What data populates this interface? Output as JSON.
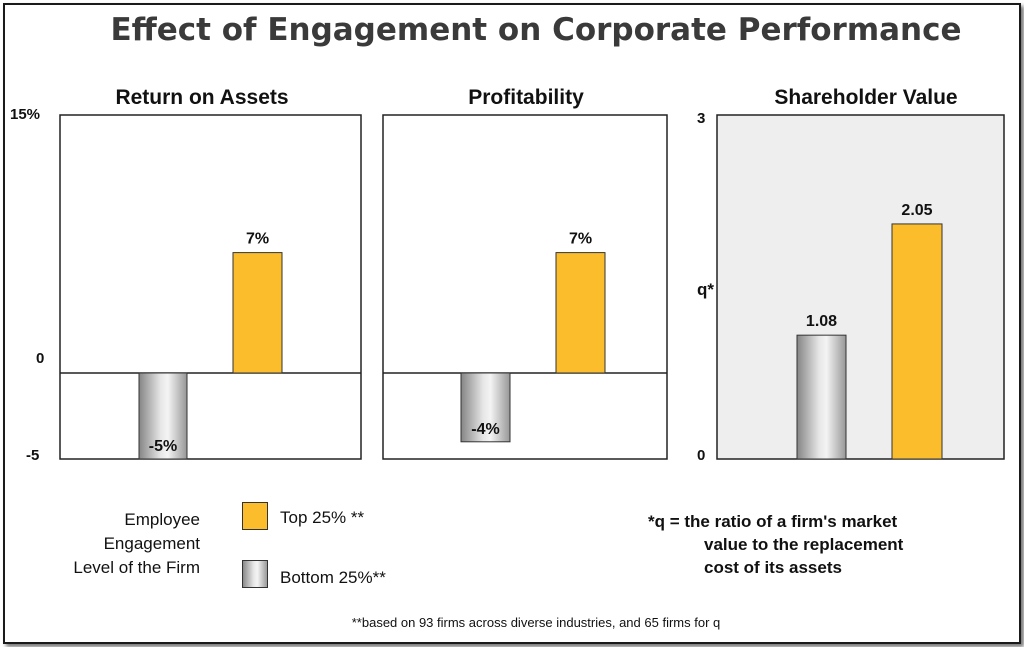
{
  "title": "Effect of Engagement on Corporate Performance",
  "colors": {
    "top": "#fbbd2c",
    "bottom_gradient": [
      "#8a8a8a",
      "#f0f0f0",
      "#9a9a9a"
    ],
    "panel3_bg": "#eeeeee"
  },
  "chart_data": [
    {
      "type": "bar",
      "title": "Return on Assets",
      "ylim": [
        -5,
        15
      ],
      "ytick_labels": [
        "15%",
        "0",
        "-5"
      ],
      "categories": [
        "Bottom 25% **",
        "Top 25% **"
      ],
      "values": [
        -5,
        7
      ],
      "data_labels": [
        "-5%",
        "7%"
      ]
    },
    {
      "type": "bar",
      "title": "Profitability",
      "ylim": [
        -5,
        15
      ],
      "categories": [
        "Bottom 25% **",
        "Top 25% **"
      ],
      "values": [
        -4,
        7
      ],
      "data_labels": [
        "-4%",
        "7%"
      ]
    },
    {
      "type": "bar",
      "title": "Shareholder Value",
      "ylabel": "q*",
      "ylim": [
        0,
        3
      ],
      "ytick_labels": [
        "3",
        "0"
      ],
      "categories": [
        "Bottom 25% **",
        "Top 25% **"
      ],
      "values": [
        1.08,
        2.05
      ],
      "data_labels": [
        "1.08",
        "2.05"
      ]
    }
  ],
  "legend": {
    "title_lines": [
      "Employee",
      "Engagement",
      "Level of the Firm"
    ],
    "top_label": "Top 25% **",
    "bottom_label": "Bottom 25%**"
  },
  "q_note": {
    "line1": "*q = the ratio of a firm's market",
    "line2": "value to the replacement",
    "line3": "cost of its assets"
  },
  "footnote": "**based on 93 firms across diverse industries, and 65 firms for q"
}
